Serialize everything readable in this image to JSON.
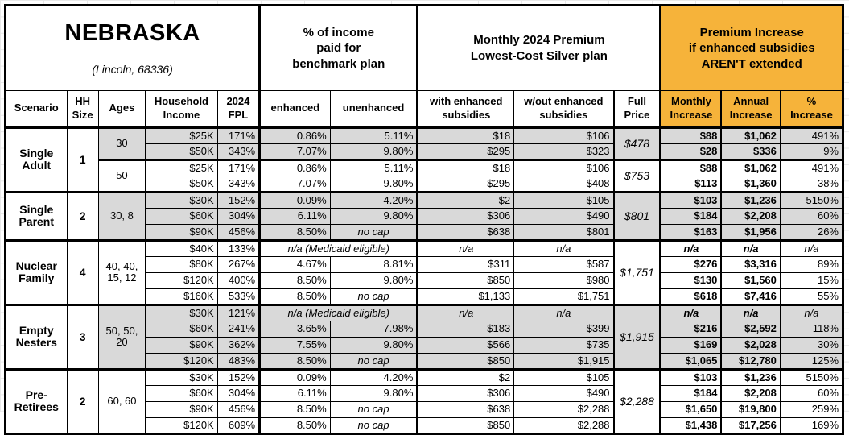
{
  "title": {
    "state": "NEBRASKA",
    "location": "(Lincoln, 68336)"
  },
  "colors": {
    "orange_header": "#F6B33A",
    "shaded_row": "#D9D9D9",
    "border": "#000000"
  },
  "group_headers": {
    "benchmark": "% of income\npaid for\nbenchmark plan",
    "premium": "Monthly 2024 Premium\nLowest-Cost Silver plan",
    "increase": "Premium Increase\nif enhanced subsidies\nAREN'T extended"
  },
  "column_headers": {
    "scenario": "Scenario",
    "hh_size": "HH\nSize",
    "ages": "Ages",
    "household_income": "Household\nIncome",
    "fpl": "2024\nFPL",
    "enhanced": "enhanced",
    "unenhanced": "unenhanced",
    "with_subsidies": "with enhanced\nsubsidies",
    "without_subsidies": "w/out enhanced\nsubsidies",
    "full_price": "Full\nPrice",
    "monthly_increase": "Monthly\nIncrease",
    "annual_increase": "Annual\nIncrease",
    "pct_increase": "%\nIncrease"
  },
  "medicaid_note": "n/a (Medicaid eligible)",
  "na": "n/a",
  "no_cap": "no cap",
  "scenarios": [
    {
      "name": "Single Adult",
      "hh_size": "1",
      "subgroups": [
        {
          "ages": "30",
          "shaded": true,
          "full_price": "$478",
          "rows": [
            {
              "income": "$25K",
              "fpl": "171%",
              "enhanced": "0.86%",
              "unenhanced": "5.11%",
              "with_sub": "$18",
              "without_sub": "$106",
              "monthly": "$88",
              "annual": "$1,062",
              "pct": "491%"
            },
            {
              "income": "$50K",
              "fpl": "343%",
              "enhanced": "7.07%",
              "unenhanced": "9.80%",
              "with_sub": "$295",
              "without_sub": "$323",
              "monthly": "$28",
              "annual": "$336",
              "pct": "9%"
            }
          ]
        },
        {
          "ages": "50",
          "shaded": false,
          "full_price": "$753",
          "rows": [
            {
              "income": "$25K",
              "fpl": "171%",
              "enhanced": "0.86%",
              "unenhanced": "5.11%",
              "with_sub": "$18",
              "without_sub": "$106",
              "monthly": "$88",
              "annual": "$1,062",
              "pct": "491%"
            },
            {
              "income": "$50K",
              "fpl": "343%",
              "enhanced": "7.07%",
              "unenhanced": "9.80%",
              "with_sub": "$295",
              "without_sub": "$408",
              "monthly": "$113",
              "annual": "$1,360",
              "pct": "38%"
            }
          ]
        }
      ]
    },
    {
      "name": "Single Parent",
      "hh_size": "2",
      "subgroups": [
        {
          "ages": "30, 8",
          "shaded": true,
          "full_price": "$801",
          "rows": [
            {
              "income": "$30K",
              "fpl": "152%",
              "enhanced": "0.09%",
              "unenhanced": "4.20%",
              "with_sub": "$2",
              "without_sub": "$105",
              "monthly": "$103",
              "annual": "$1,236",
              "pct": "5150%"
            },
            {
              "income": "$60K",
              "fpl": "304%",
              "enhanced": "6.11%",
              "unenhanced": "9.80%",
              "with_sub": "$306",
              "without_sub": "$490",
              "monthly": "$184",
              "annual": "$2,208",
              "pct": "60%"
            },
            {
              "income": "$90K",
              "fpl": "456%",
              "enhanced": "8.50%",
              "unenhanced": "no cap",
              "with_sub": "$638",
              "without_sub": "$801",
              "monthly": "$163",
              "annual": "$1,956",
              "pct": "26%"
            }
          ]
        }
      ]
    },
    {
      "name": "Nuclear Family",
      "hh_size": "4",
      "subgroups": [
        {
          "ages": "40, 40, 15, 12",
          "shaded": false,
          "full_price": "$1,751",
          "rows": [
            {
              "income": "$40K",
              "fpl": "133%",
              "medicaid": true
            },
            {
              "income": "$80K",
              "fpl": "267%",
              "enhanced": "4.67%",
              "unenhanced": "8.81%",
              "with_sub": "$311",
              "without_sub": "$587",
              "monthly": "$276",
              "annual": "$3,316",
              "pct": "89%"
            },
            {
              "income": "$120K",
              "fpl": "400%",
              "enhanced": "8.50%",
              "unenhanced": "9.80%",
              "with_sub": "$850",
              "without_sub": "$980",
              "monthly": "$130",
              "annual": "$1,560",
              "pct": "15%"
            },
            {
              "income": "$160K",
              "fpl": "533%",
              "enhanced": "8.50%",
              "unenhanced": "no cap",
              "with_sub": "$1,133",
              "without_sub": "$1,751",
              "monthly": "$618",
              "annual": "$7,416",
              "pct": "55%"
            }
          ]
        }
      ]
    },
    {
      "name": "Empty Nesters",
      "hh_size": "3",
      "subgroups": [
        {
          "ages": "50, 50, 20",
          "shaded": true,
          "full_price": "$1,915",
          "rows": [
            {
              "income": "$30K",
              "fpl": "121%",
              "medicaid": true
            },
            {
              "income": "$60K",
              "fpl": "241%",
              "enhanced": "3.65%",
              "unenhanced": "7.98%",
              "with_sub": "$183",
              "without_sub": "$399",
              "monthly": "$216",
              "annual": "$2,592",
              "pct": "118%"
            },
            {
              "income": "$90K",
              "fpl": "362%",
              "enhanced": "7.55%",
              "unenhanced": "9.80%",
              "with_sub": "$566",
              "without_sub": "$735",
              "monthly": "$169",
              "annual": "$2,028",
              "pct": "30%"
            },
            {
              "income": "$120K",
              "fpl": "483%",
              "enhanced": "8.50%",
              "unenhanced": "no cap",
              "with_sub": "$850",
              "without_sub": "$1,915",
              "monthly": "$1,065",
              "annual": "$12,780",
              "pct": "125%"
            }
          ]
        }
      ]
    },
    {
      "name": "Pre-Retirees",
      "hh_size": "2",
      "subgroups": [
        {
          "ages": "60, 60",
          "shaded": false,
          "full_price": "$2,288",
          "rows": [
            {
              "income": "$30K",
              "fpl": "152%",
              "enhanced": "0.09%",
              "unenhanced": "4.20%",
              "with_sub": "$2",
              "without_sub": "$105",
              "monthly": "$103",
              "annual": "$1,236",
              "pct": "5150%"
            },
            {
              "income": "$60K",
              "fpl": "304%",
              "enhanced": "6.11%",
              "unenhanced": "9.80%",
              "with_sub": "$306",
              "without_sub": "$490",
              "monthly": "$184",
              "annual": "$2,208",
              "pct": "60%"
            },
            {
              "income": "$90K",
              "fpl": "456%",
              "enhanced": "8.50%",
              "unenhanced": "no cap",
              "with_sub": "$638",
              "without_sub": "$2,288",
              "monthly": "$1,650",
              "annual": "$19,800",
              "pct": "259%"
            },
            {
              "income": "$120K",
              "fpl": "609%",
              "enhanced": "8.50%",
              "unenhanced": "no cap",
              "with_sub": "$850",
              "without_sub": "$2,288",
              "monthly": "$1,438",
              "annual": "$17,256",
              "pct": "169%"
            }
          ]
        }
      ]
    }
  ],
  "chart_data": {
    "type": "table",
    "title": "NEBRASKA (Lincoln, 68336)",
    "column_groups": [
      "% of income paid for benchmark plan",
      "Monthly 2024 Premium Lowest-Cost Silver plan",
      "Premium Increase if enhanced subsidies AREN'T extended"
    ],
    "columns": [
      "Scenario",
      "HH Size",
      "Ages",
      "Household Income",
      "2024 FPL",
      "enhanced",
      "unenhanced",
      "with enhanced subsidies",
      "w/out enhanced subsidies",
      "Full Price",
      "Monthly Increase",
      "Annual Increase",
      "% Increase"
    ],
    "rows": [
      [
        "Single Adult",
        "1",
        "30",
        "$25K",
        "171%",
        "0.86%",
        "5.11%",
        "$18",
        "$106",
        "$478",
        "$88",
        "$1,062",
        "491%"
      ],
      [
        "Single Adult",
        "1",
        "30",
        "$50K",
        "343%",
        "7.07%",
        "9.80%",
        "$295",
        "$323",
        "$478",
        "$28",
        "$336",
        "9%"
      ],
      [
        "Single Adult",
        "1",
        "50",
        "$25K",
        "171%",
        "0.86%",
        "5.11%",
        "$18",
        "$106",
        "$753",
        "$88",
        "$1,062",
        "491%"
      ],
      [
        "Single Adult",
        "1",
        "50",
        "$50K",
        "343%",
        "7.07%",
        "9.80%",
        "$295",
        "$408",
        "$753",
        "$113",
        "$1,360",
        "38%"
      ],
      [
        "Single Parent",
        "2",
        "30, 8",
        "$30K",
        "152%",
        "0.09%",
        "4.20%",
        "$2",
        "$105",
        "$801",
        "$103",
        "$1,236",
        "5150%"
      ],
      [
        "Single Parent",
        "2",
        "30, 8",
        "$60K",
        "304%",
        "6.11%",
        "9.80%",
        "$306",
        "$490",
        "$801",
        "$184",
        "$2,208",
        "60%"
      ],
      [
        "Single Parent",
        "2",
        "30, 8",
        "$90K",
        "456%",
        "8.50%",
        "no cap",
        "$638",
        "$801",
        "$801",
        "$163",
        "$1,956",
        "26%"
      ],
      [
        "Nuclear Family",
        "4",
        "40, 40, 15, 12",
        "$40K",
        "133%",
        "n/a (Medicaid eligible)",
        "n/a (Medicaid eligible)",
        "n/a",
        "n/a",
        "$1,751",
        "n/a",
        "n/a",
        "n/a"
      ],
      [
        "Nuclear Family",
        "4",
        "40, 40, 15, 12",
        "$80K",
        "267%",
        "4.67%",
        "8.81%",
        "$311",
        "$587",
        "$1,751",
        "$276",
        "$3,316",
        "89%"
      ],
      [
        "Nuclear Family",
        "4",
        "40, 40, 15, 12",
        "$120K",
        "400%",
        "8.50%",
        "9.80%",
        "$850",
        "$980",
        "$1,751",
        "$130",
        "$1,560",
        "15%"
      ],
      [
        "Nuclear Family",
        "4",
        "40, 40, 15, 12",
        "$160K",
        "533%",
        "8.50%",
        "no cap",
        "$1,133",
        "$1,751",
        "$1,751",
        "$618",
        "$7,416",
        "55%"
      ],
      [
        "Empty Nesters",
        "3",
        "50, 50, 20",
        "$30K",
        "121%",
        "n/a (Medicaid eligible)",
        "n/a (Medicaid eligible)",
        "n/a",
        "n/a",
        "$1,915",
        "n/a",
        "n/a",
        "n/a"
      ],
      [
        "Empty Nesters",
        "3",
        "50, 50, 20",
        "$60K",
        "241%",
        "3.65%",
        "7.98%",
        "$183",
        "$399",
        "$1,915",
        "$216",
        "$2,592",
        "118%"
      ],
      [
        "Empty Nesters",
        "3",
        "50, 50, 20",
        "$90K",
        "362%",
        "7.55%",
        "9.80%",
        "$566",
        "$735",
        "$1,915",
        "$169",
        "$2,028",
        "30%"
      ],
      [
        "Empty Nesters",
        "3",
        "50, 50, 20",
        "$120K",
        "483%",
        "8.50%",
        "no cap",
        "$850",
        "$1,915",
        "$1,915",
        "$1,065",
        "$12,780",
        "125%"
      ],
      [
        "Pre-Retirees",
        "2",
        "60, 60",
        "$30K",
        "152%",
        "0.09%",
        "4.20%",
        "$2",
        "$105",
        "$2,288",
        "$103",
        "$1,236",
        "5150%"
      ],
      [
        "Pre-Retirees",
        "2",
        "60, 60",
        "$60K",
        "304%",
        "6.11%",
        "9.80%",
        "$306",
        "$490",
        "$2,288",
        "$184",
        "$2,208",
        "60%"
      ],
      [
        "Pre-Retirees",
        "2",
        "60, 60",
        "$90K",
        "456%",
        "8.50%",
        "no cap",
        "$638",
        "$2,288",
        "$2,288",
        "$1,650",
        "$19,800",
        "259%"
      ],
      [
        "Pre-Retirees",
        "2",
        "60, 60",
        "$120K",
        "609%",
        "8.50%",
        "no cap",
        "$850",
        "$2,288",
        "$2,288",
        "$1,438",
        "$17,256",
        "169%"
      ]
    ]
  }
}
